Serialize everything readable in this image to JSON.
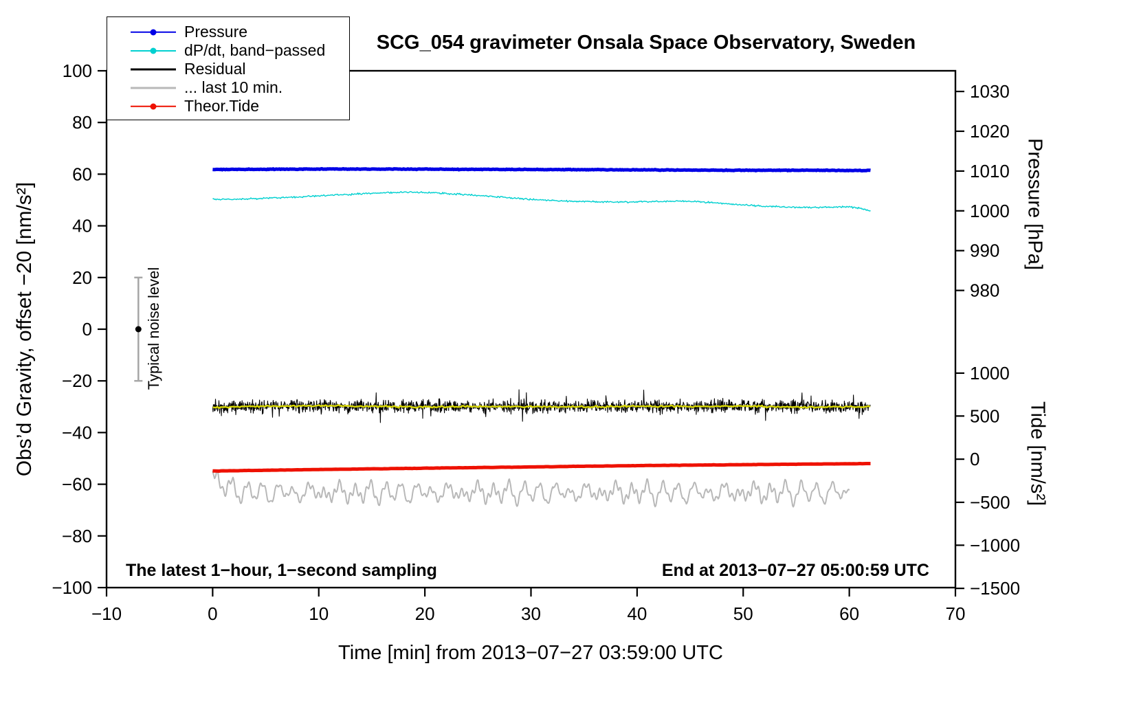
{
  "figure": {
    "title": "SCG_054 gravimeter Onsala Space Observatory, Sweden",
    "bottom_left_note": "The latest 1−hour, 1−second sampling",
    "bottom_right_note": "End at 2013−07−27 05:00:59 UTC"
  },
  "legend": {
    "position": "top-left",
    "items": [
      {
        "label": "Pressure",
        "color": "#0000e6",
        "lw": 2.5,
        "dot": true,
        "icon": "pressure-legend-marker"
      },
      {
        "label": "dP/dt, band−passed",
        "color": "#00d0d0",
        "lw": 2,
        "dot": true,
        "icon": "dpdt-legend-marker"
      },
      {
        "label": "Residual",
        "color": "#000000",
        "lw": 3,
        "dot": false,
        "icon": "residual-legend-marker"
      },
      {
        "label": "... last 10 min.",
        "color": "#b8b8b8",
        "lw": 3,
        "dot": false,
        "icon": "last10-legend-marker"
      },
      {
        "label": "Theor.Tide",
        "color": "#ee1100",
        "lw": 2.5,
        "dot": true,
        "icon": "tide-legend-marker"
      }
    ]
  },
  "chart_data": {
    "type": "line",
    "title": "SCG_054 gravimeter Onsala Space Observatory, Sweden",
    "grid": false,
    "legend_position": "top-left",
    "series_y_units": "left axis units (Obs'd Gravity, nm/s², offset −20)",
    "x_axis": {
      "label": "Time [min] from 2013−07−27 03:59:00 UTC",
      "range": [
        -10,
        70
      ],
      "ticks": [
        -10,
        0,
        10,
        20,
        30,
        40,
        50,
        60,
        70
      ],
      "tick_labels": [
        "−10",
        "0",
        "10",
        "20",
        "30",
        "40",
        "50",
        "60",
        "70"
      ]
    },
    "y_axis_left": {
      "label": "Obs’d Gravity, offset −20 [nm/s²]",
      "range": [
        -100,
        100
      ],
      "ticks": [
        100,
        80,
        60,
        40,
        20,
        0,
        -20,
        -40,
        -60,
        -80,
        -100
      ],
      "tick_labels": [
        "100",
        "80",
        "60",
        "40",
        "20",
        "0",
        "−20",
        "−40",
        "−60",
        "−80",
        "−100"
      ]
    },
    "y_axis_pressure": {
      "label": "Pressure [hPa]",
      "ticks_hpa": [
        1030,
        1020,
        1010,
        1000,
        990,
        980
      ],
      "tick_labels": [
        "1030",
        "1020",
        "1010",
        "1000",
        "990",
        "980"
      ],
      "gravity_positions": [
        92,
        76.6,
        61.2,
        45.8,
        30.4,
        15
      ]
    },
    "y_axis_tide": {
      "label": "Tide [nm/s²]",
      "ticks": [
        1000,
        500,
        0,
        -500,
        -1000,
        -1500
      ],
      "tick_labels": [
        "1000",
        "500",
        "0",
        "−500",
        "−1000",
        "−1500"
      ],
      "gravity_positions": [
        -17,
        -33.6,
        -50.3,
        -67,
        -83.6,
        -100.3
      ]
    },
    "annotations": {
      "noise_marker": {
        "x": -7,
        "y": 0,
        "error": 20,
        "label": "Typical noise level"
      }
    },
    "series": [
      {
        "id": "pressure",
        "name": "Pressure",
        "color": "#0000e6",
        "width": 5,
        "gen": "anchors",
        "x_range": [
          0,
          62
        ],
        "step": 0.1,
        "noise": 0.12,
        "anchors": [
          [
            0,
            61.8
          ],
          [
            6,
            61.9
          ],
          [
            14,
            62.0
          ],
          [
            22,
            61.9
          ],
          [
            30,
            61.8
          ],
          [
            38,
            61.7
          ],
          [
            44,
            61.6
          ],
          [
            50,
            61.5
          ],
          [
            56,
            61.5
          ],
          [
            62,
            61.4
          ]
        ]
      },
      {
        "id": "dpdt_bandpassed",
        "name": "dP/dt, band−passed",
        "color": "#00d0d0",
        "width": 1.4,
        "gen": "anchors",
        "x_range": [
          0,
          62
        ],
        "step": 0.08,
        "noise": 0.3,
        "anchors": [
          [
            0,
            50.2
          ],
          [
            3,
            50.3
          ],
          [
            6,
            50.9
          ],
          [
            9,
            51.4
          ],
          [
            12,
            52.0
          ],
          [
            15,
            52.6
          ],
          [
            17,
            52.9
          ],
          [
            19,
            53.0
          ],
          [
            21,
            52.8
          ],
          [
            24,
            52.0
          ],
          [
            27,
            51.2
          ],
          [
            30,
            50.2
          ],
          [
            33,
            49.6
          ],
          [
            36,
            49.3
          ],
          [
            39,
            49.2
          ],
          [
            42,
            49.4
          ],
          [
            44,
            49.6
          ],
          [
            46,
            49.3
          ],
          [
            48,
            48.7
          ],
          [
            50,
            48.1
          ],
          [
            52,
            47.6
          ],
          [
            54,
            47.3
          ],
          [
            56,
            47.1
          ],
          [
            58,
            47.2
          ],
          [
            60,
            47.4
          ],
          [
            61,
            46.8
          ],
          [
            62,
            45.8
          ]
        ]
      },
      {
        "id": "residual",
        "name": "Residual",
        "color": "#000000",
        "width": 1.1,
        "gen": "anchors",
        "x_range": [
          0,
          62
        ],
        "step": 0.033,
        "noise": 2.4,
        "spike_prob": 0.03,
        "spike_mult": 2.3,
        "anchors": [
          [
            0,
            -30.2
          ],
          [
            10,
            -29.9
          ],
          [
            20,
            -30.1
          ],
          [
            30,
            -30.0
          ],
          [
            40,
            -30.0
          ],
          [
            50,
            -29.8
          ],
          [
            62,
            -30.1
          ]
        ]
      },
      {
        "id": "residual_mean",
        "name": "Residual running mean",
        "color": "#d8d800",
        "width": 2.4,
        "gen": "anchors",
        "x_range": [
          0,
          62
        ],
        "step": 0.15,
        "noise": 0.35,
        "anchors": [
          [
            0,
            -30.2
          ],
          [
            5,
            -29.8
          ],
          [
            10,
            -29.6
          ],
          [
            15,
            -29.9
          ],
          [
            20,
            -30.1
          ],
          [
            25,
            -29.9
          ],
          [
            30,
            -30.0
          ],
          [
            35,
            -30.1
          ],
          [
            40,
            -29.8
          ],
          [
            45,
            -30.0
          ],
          [
            50,
            -29.7
          ],
          [
            55,
            -30.2
          ],
          [
            62,
            -30.0
          ]
        ]
      },
      {
        "id": "last_10_min",
        "name": "... last 10 min.",
        "color": "#b8b8b8",
        "width": 2,
        "gen": "osc",
        "x_range": [
          0,
          60
        ],
        "step": 0.06,
        "noise": 0.25,
        "base": -63.2,
        "terms": [
          {
            "amp": 2.6,
            "period": 1.45
          },
          {
            "amp": 1.3,
            "period": 0.5
          },
          {
            "amp": 1.1,
            "period": 2.6
          }
        ],
        "amp_mod": {
          "amp": 0.35,
          "period": 13
        },
        "transient": {
          "amp": 7.5,
          "tau": 1.0
        }
      },
      {
        "id": "theor_tide",
        "name": "Theor.Tide",
        "color": "#ee1100",
        "width": 5,
        "gen": "anchors",
        "x_range": [
          0,
          62
        ],
        "step": 0.2,
        "noise": 0.05,
        "anchors": [
          [
            0,
            -54.9
          ],
          [
            8,
            -54.4
          ],
          [
            16,
            -54.0
          ],
          [
            24,
            -53.6
          ],
          [
            32,
            -53.2
          ],
          [
            40,
            -52.8
          ],
          [
            48,
            -52.5
          ],
          [
            56,
            -52.2
          ],
          [
            62,
            -52.0
          ]
        ]
      }
    ]
  }
}
